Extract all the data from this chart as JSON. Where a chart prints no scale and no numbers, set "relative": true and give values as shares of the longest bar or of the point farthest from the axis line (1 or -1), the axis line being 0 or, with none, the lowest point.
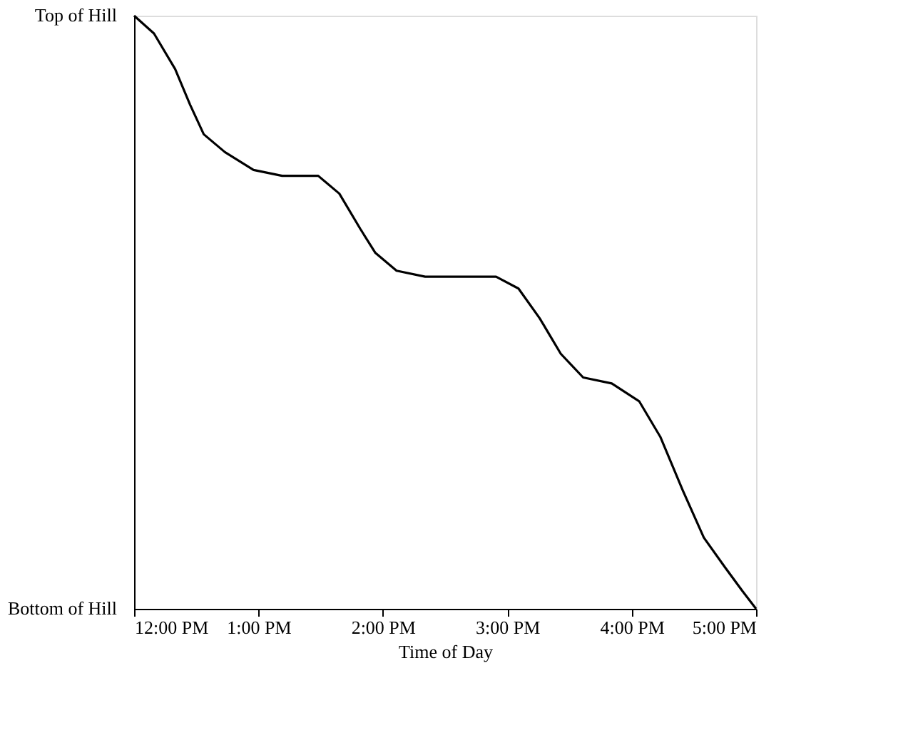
{
  "chart_data": {
    "type": "line",
    "xlabel": "Time of Day",
    "x": [
      12.0,
      12.16,
      12.33,
      12.45,
      12.56,
      12.73,
      12.96,
      13.19,
      13.36,
      13.48,
      13.65,
      13.82,
      13.94,
      14.11,
      14.34,
      14.68,
      14.91,
      15.09,
      15.26,
      15.43,
      15.61,
      15.84,
      16.06,
      16.23,
      16.41,
      16.58,
      16.75,
      16.89,
      17.0
    ],
    "series": [
      {
        "color": "#000000",
        "values": [
          1.0,
          0.97,
          0.91,
          0.85,
          0.8,
          0.77,
          0.74,
          0.73,
          0.73,
          0.73,
          0.7,
          0.64,
          0.6,
          0.57,
          0.56,
          0.56,
          0.56,
          0.54,
          0.49,
          0.43,
          0.39,
          0.38,
          0.35,
          0.29,
          0.2,
          0.12,
          0.07,
          0.03,
          0.0
        ]
      }
    ],
    "xlim": [
      12,
      17
    ],
    "xticks": [
      {
        "value": 12,
        "label": "12:00 PM"
      },
      {
        "value": 13,
        "label": "1:00 PM"
      },
      {
        "value": 14,
        "label": "2:00 PM"
      },
      {
        "value": 15,
        "label": "3:00 PM"
      },
      {
        "value": 16,
        "label": "4:00 PM"
      },
      {
        "value": 17,
        "label": "5:00 PM"
      }
    ],
    "relative": true,
    "annotations": [
      "Top of Hill",
      "Bottom of Hill"
    ],
    "grid": false,
    "marker": "none",
    "line_style": "solid"
  }
}
